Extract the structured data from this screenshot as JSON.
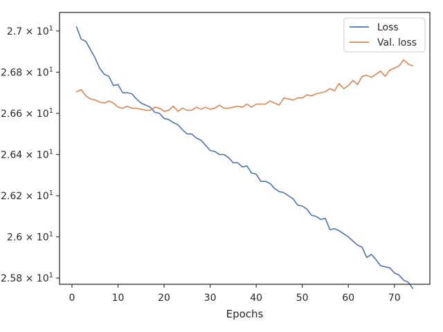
{
  "chart_data": {
    "type": "line",
    "title": "",
    "xlabel": "Epochs",
    "ylabel": "",
    "xlim": [
      -2.7,
      77.7
    ],
    "ylim": [
      25.77,
      27.09
    ],
    "xticks": [
      0,
      10,
      20,
      30,
      40,
      50,
      60,
      70
    ],
    "yticks": [
      {
        "value": 25.8,
        "mantissa": "2.58",
        "exponent": "1"
      },
      {
        "value": 26.0,
        "mantissa": "2.6",
        "exponent": "1"
      },
      {
        "value": 26.2,
        "mantissa": "2.62",
        "exponent": "1"
      },
      {
        "value": 26.4,
        "mantissa": "2.64",
        "exponent": "1"
      },
      {
        "value": 26.6,
        "mantissa": "2.66",
        "exponent": "1"
      },
      {
        "value": 26.8,
        "mantissa": "2.68",
        "exponent": "1"
      },
      {
        "value": 27.0,
        "mantissa": "2.7",
        "exponent": "1"
      }
    ],
    "grid": false,
    "legend_position": "top-right",
    "x": [
      1,
      2,
      3,
      4,
      5,
      6,
      7,
      8,
      9,
      10,
      11,
      12,
      13,
      14,
      15,
      16,
      17,
      18,
      19,
      20,
      21,
      22,
      23,
      24,
      25,
      26,
      27,
      28,
      29,
      30,
      31,
      32,
      33,
      34,
      35,
      36,
      37,
      38,
      39,
      40,
      41,
      42,
      43,
      44,
      45,
      46,
      47,
      48,
      49,
      50,
      51,
      52,
      53,
      54,
      55,
      56,
      57,
      58,
      59,
      60,
      61,
      62,
      63,
      64,
      65,
      66,
      67,
      68,
      69,
      70,
      71,
      72,
      73,
      74
    ],
    "series": [
      {
        "name": "Loss",
        "color": "#4c72b0",
        "values": [
          27.02,
          26.96,
          26.95,
          26.91,
          26.87,
          26.82,
          26.79,
          26.78,
          26.735,
          26.74,
          26.7,
          26.7,
          26.695,
          26.67,
          26.65,
          26.64,
          26.63,
          26.605,
          26.6,
          26.575,
          26.57,
          26.555,
          26.545,
          26.52,
          26.5,
          26.5,
          26.48,
          26.47,
          26.445,
          26.42,
          26.415,
          26.4,
          26.4,
          26.385,
          26.36,
          26.36,
          26.34,
          26.345,
          26.31,
          26.305,
          26.27,
          26.27,
          26.26,
          26.235,
          26.22,
          26.215,
          26.2,
          26.185,
          26.155,
          26.15,
          26.135,
          26.105,
          26.1,
          26.085,
          26.09,
          26.035,
          26.04,
          26.03,
          26.015,
          26.0,
          25.98,
          25.96,
          25.95,
          25.9,
          25.915,
          25.89,
          25.86,
          25.855,
          25.85,
          25.825,
          25.815,
          25.79,
          25.78,
          25.75
        ]
      },
      {
        "name": "Val. loss",
        "color": "#dd8452",
        "values": [
          26.705,
          26.715,
          26.685,
          26.67,
          26.665,
          26.655,
          26.65,
          26.66,
          26.65,
          26.63,
          26.625,
          26.635,
          26.625,
          26.625,
          26.62,
          26.615,
          26.615,
          26.63,
          26.625,
          26.61,
          26.615,
          26.635,
          26.61,
          26.625,
          26.615,
          26.615,
          26.63,
          26.62,
          26.63,
          26.62,
          26.625,
          26.64,
          26.625,
          26.625,
          26.63,
          26.635,
          26.63,
          26.645,
          26.63,
          26.645,
          26.645,
          26.645,
          26.66,
          26.65,
          26.64,
          26.675,
          26.67,
          26.665,
          26.675,
          26.675,
          26.69,
          26.685,
          26.695,
          26.7,
          26.705,
          26.72,
          26.71,
          26.745,
          26.72,
          26.735,
          26.76,
          26.74,
          26.78,
          26.785,
          26.775,
          26.79,
          26.805,
          26.78,
          26.81,
          26.82,
          26.83,
          26.86,
          26.84,
          26.83
        ]
      }
    ]
  }
}
